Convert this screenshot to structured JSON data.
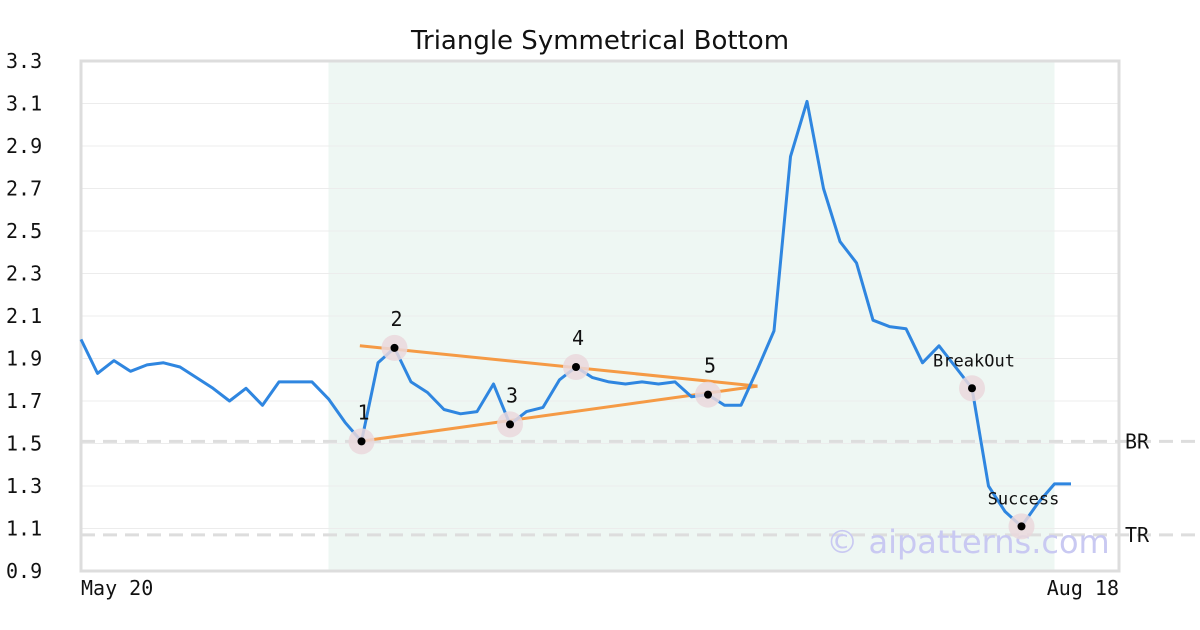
{
  "chart_data": {
    "type": "line",
    "title": "Triangle Symmetrical Bottom",
    "xlabel": "",
    "ylabel": "",
    "ylim": [
      0.9,
      3.3
    ],
    "yticks": [
      "3.3",
      "3.1",
      "2.9",
      "2.7",
      "2.5",
      "2.3",
      "2.1",
      "1.9",
      "1.7",
      "1.5",
      "1.3",
      "1.1",
      "0.9"
    ],
    "xticks": [
      {
        "label": "May 20",
        "index": 0
      },
      {
        "label": "Aug 18",
        "index": 60
      }
    ],
    "shaded_range": [
      15,
      59
    ],
    "series": [
      {
        "color": "#2f86e0",
        "values": [
          1.99,
          1.83,
          1.89,
          1.84,
          1.87,
          1.88,
          1.86,
          1.81,
          1.76,
          1.7,
          1.76,
          1.68,
          1.79,
          1.79,
          1.79,
          1.71,
          1.6,
          1.51,
          1.88,
          1.95,
          1.79,
          1.74,
          1.66,
          1.64,
          1.65,
          1.78,
          1.59,
          1.65,
          1.67,
          1.8,
          1.86,
          1.81,
          1.79,
          1.78,
          1.79,
          1.78,
          1.79,
          1.72,
          1.73,
          1.68,
          1.68,
          1.85,
          2.03,
          2.85,
          3.11,
          2.7,
          2.45,
          2.35,
          2.08,
          2.05,
          2.04,
          1.88,
          1.96,
          1.86,
          1.76,
          1.3,
          1.18,
          1.11,
          1.22,
          1.31,
          1.31
        ]
      }
    ],
    "trendlines": [
      {
        "color": "#f59a45",
        "from": [
          16.9,
          1.96
        ],
        "to": [
          41,
          1.77
        ]
      },
      {
        "color": "#f59a45",
        "from": [
          16.9,
          1.51
        ],
        "to": [
          41,
          1.77
        ]
      }
    ],
    "levels": [
      {
        "label": "BR",
        "value": 1.51
      },
      {
        "label": "TR",
        "value": 1.07
      }
    ],
    "points": [
      {
        "label": "1",
        "index": 17,
        "value": 1.51,
        "label_pos": "above"
      },
      {
        "label": "2",
        "index": 19,
        "value": 1.95,
        "label_pos": "above"
      },
      {
        "label": "3",
        "index": 26,
        "value": 1.59,
        "label_pos": "above"
      },
      {
        "label": "4",
        "index": 30,
        "value": 1.86,
        "label_pos": "above"
      },
      {
        "label": "5",
        "index": 38,
        "value": 1.73,
        "label_pos": "above"
      },
      {
        "label": "BreakOut",
        "index": 54,
        "value": 1.76,
        "label_pos": "above"
      },
      {
        "label": "Success",
        "index": 57,
        "value": 1.11,
        "label_pos": "above"
      }
    ],
    "grid": true,
    "legend": "none"
  },
  "watermark": "© aipatterns.com",
  "colors": {
    "line": "#2f86e0",
    "trend": "#f59a45",
    "shade": "#eef7f3",
    "frame": "#dddddd",
    "grid": "#ececec",
    "level": "#dddddd",
    "marker_halo": "#ead8dc"
  }
}
